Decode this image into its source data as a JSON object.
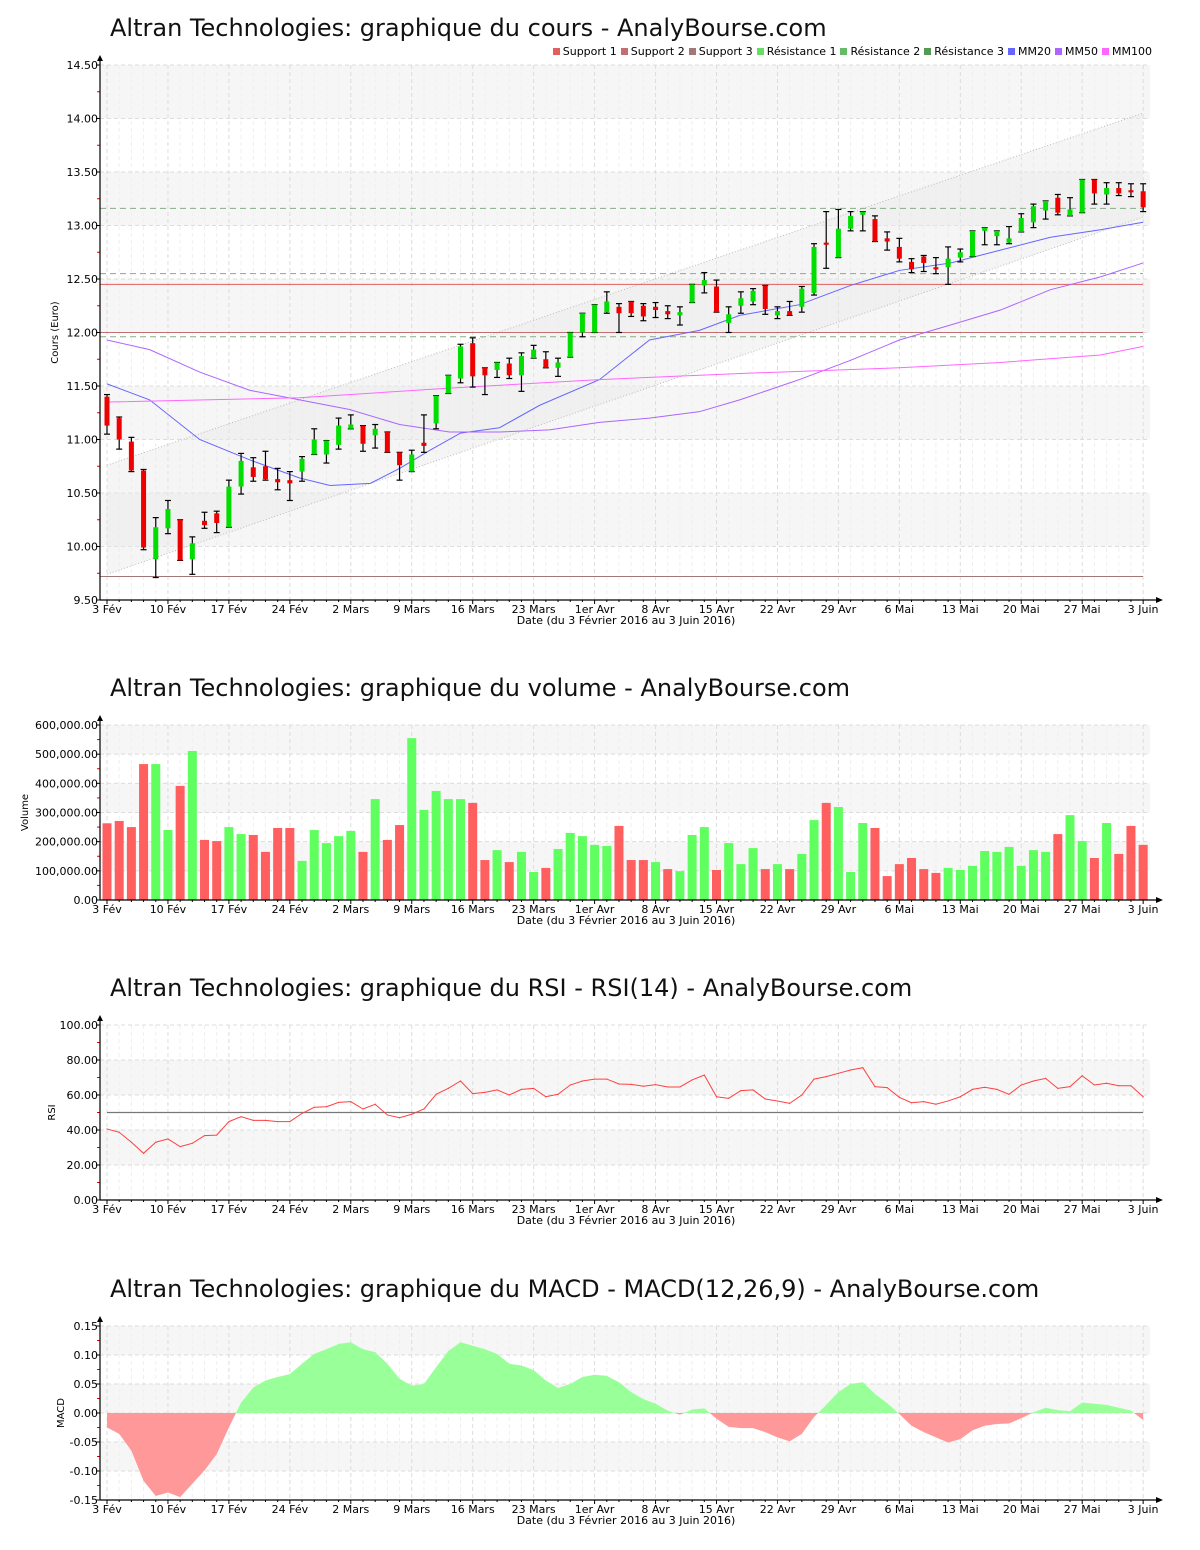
{
  "x_axis": {
    "labels": [
      "3 Fév",
      "10 Fév",
      "17 Fév",
      "24 Fév",
      "2 Mars",
      "9 Mars",
      "16 Mars",
      "23 Mars",
      "1er Avr",
      "8 Avr",
      "15 Avr",
      "22 Avr",
      "29 Avr",
      "6 Mai",
      "13 Mai",
      "20 Mai",
      "27 Mai",
      "3 Juin"
    ],
    "positions": [
      0,
      5,
      10,
      15,
      20,
      25,
      30,
      35,
      40,
      45,
      50,
      55,
      60,
      65,
      70,
      75,
      80,
      85
    ],
    "xlabel": "Date (du 3 Février 2016 au 3 Juin 2016)",
    "n_days": 86
  },
  "legend": [
    {
      "label": "Support 1",
      "color": "#e06060"
    },
    {
      "label": "Support 2",
      "color": "#c07070"
    },
    {
      "label": "Support 3",
      "color": "#a07878"
    },
    {
      "label": "Résistance 1",
      "color": "#66dd66"
    },
    {
      "label": "Résistance 2",
      "color": "#66bb66"
    },
    {
      "label": "Résistance 3",
      "color": "#559955"
    },
    {
      "label": "MM20",
      "color": "#6666ff"
    },
    {
      "label": "MM50",
      "color": "#aa66ff"
    },
    {
      "label": "MM100",
      "color": "#ff66ff"
    }
  ],
  "chart_data": [
    {
      "type": "candlestick",
      "title": "Altran Technologies: graphique du cours - AnalyBourse.com",
      "ylabel": "Cours (Euro)",
      "ylim": [
        9.5,
        14.5
      ],
      "yticks": [
        "14.50",
        "14.00",
        "13.50",
        "13.00",
        "12.50",
        "12.00",
        "11.50",
        "11.00",
        "10.50",
        "10.00",
        "9.50"
      ],
      "up_color": "#00dd00",
      "down_color": "#ee0000",
      "ohlc": [
        [
          11.4,
          11.42,
          11.05,
          11.13
        ],
        [
          11.2,
          11.21,
          10.91,
          11.0
        ],
        [
          10.98,
          11.02,
          10.7,
          10.71
        ],
        [
          10.71,
          10.72,
          9.97,
          9.99
        ],
        [
          9.88,
          10.27,
          9.71,
          10.18
        ],
        [
          10.17,
          10.43,
          10.12,
          10.35
        ],
        [
          10.25,
          10.25,
          9.87,
          9.87
        ],
        [
          9.88,
          10.09,
          9.74,
          10.03
        ],
        [
          10.24,
          10.32,
          10.17,
          10.2
        ],
        [
          10.31,
          10.33,
          10.13,
          10.22
        ],
        [
          10.18,
          10.62,
          10.18,
          10.56
        ],
        [
          10.56,
          10.87,
          10.49,
          10.8
        ],
        [
          10.74,
          10.83,
          10.61,
          10.65
        ],
        [
          10.75,
          10.89,
          10.62,
          10.63
        ],
        [
          10.63,
          10.73,
          10.53,
          10.6
        ],
        [
          10.62,
          10.7,
          10.43,
          10.59
        ],
        [
          10.7,
          10.84,
          10.61,
          10.82
        ],
        [
          10.86,
          11.1,
          10.86,
          11.0
        ],
        [
          10.86,
          10.99,
          10.78,
          10.99
        ],
        [
          10.95,
          11.2,
          10.91,
          11.13
        ],
        [
          11.1,
          11.23,
          11.1,
          11.14
        ],
        [
          11.13,
          11.13,
          10.89,
          10.96
        ],
        [
          11.04,
          11.14,
          10.92,
          11.1
        ],
        [
          11.07,
          11.07,
          10.88,
          10.88
        ],
        [
          10.88,
          10.88,
          10.62,
          10.76
        ],
        [
          10.7,
          10.9,
          10.7,
          10.86
        ],
        [
          10.97,
          11.23,
          10.88,
          10.94
        ],
        [
          11.15,
          11.41,
          11.1,
          11.41
        ],
        [
          11.43,
          11.6,
          11.43,
          11.6
        ],
        [
          11.57,
          11.89,
          11.53,
          11.87
        ],
        [
          11.9,
          11.95,
          11.49,
          11.59
        ],
        [
          11.67,
          11.67,
          11.42,
          11.6
        ],
        [
          11.65,
          11.72,
          11.58,
          11.72
        ],
        [
          11.71,
          11.76,
          11.57,
          11.6
        ],
        [
          11.6,
          11.81,
          11.45,
          11.78
        ],
        [
          11.76,
          11.88,
          11.76,
          11.84
        ],
        [
          11.75,
          11.82,
          11.67,
          11.67
        ],
        [
          11.67,
          11.76,
          11.59,
          11.72
        ],
        [
          11.77,
          12.0,
          11.77,
          12.0
        ],
        [
          12.0,
          12.18,
          11.96,
          12.18
        ],
        [
          12.0,
          12.26,
          12.0,
          12.26
        ],
        [
          12.19,
          12.38,
          12.18,
          12.29
        ],
        [
          12.24,
          12.27,
          12.0,
          12.18
        ],
        [
          12.29,
          12.29,
          12.15,
          12.18
        ],
        [
          12.25,
          12.27,
          12.11,
          12.15
        ],
        [
          12.24,
          12.28,
          12.14,
          12.21
        ],
        [
          12.2,
          12.25,
          12.13,
          12.17
        ],
        [
          12.16,
          12.24,
          12.07,
          12.19
        ],
        [
          12.28,
          12.45,
          12.28,
          12.45
        ],
        [
          12.44,
          12.56,
          12.37,
          12.49
        ],
        [
          12.43,
          12.49,
          12.19,
          12.19
        ],
        [
          12.09,
          12.24,
          12.0,
          12.17
        ],
        [
          12.25,
          12.38,
          12.18,
          12.32
        ],
        [
          12.29,
          12.41,
          12.26,
          12.39
        ],
        [
          12.44,
          12.44,
          12.17,
          12.22
        ],
        [
          12.16,
          12.24,
          12.13,
          12.2
        ],
        [
          12.2,
          12.29,
          12.16,
          12.16
        ],
        [
          12.24,
          12.43,
          12.19,
          12.41
        ],
        [
          12.37,
          12.83,
          12.35,
          12.8
        ],
        [
          12.84,
          13.13,
          12.6,
          12.82
        ],
        [
          12.7,
          13.15,
          12.7,
          12.97
        ],
        [
          12.97,
          13.13,
          12.95,
          13.09
        ],
        [
          13.1,
          13.13,
          12.95,
          13.13
        ],
        [
          13.06,
          13.09,
          12.85,
          12.85
        ],
        [
          12.88,
          12.94,
          12.77,
          12.85
        ],
        [
          12.8,
          12.88,
          12.66,
          12.69
        ],
        [
          12.66,
          12.69,
          12.56,
          12.59
        ],
        [
          12.71,
          12.72,
          12.57,
          12.65
        ],
        [
          12.61,
          12.7,
          12.55,
          12.59
        ],
        [
          12.61,
          12.8,
          12.45,
          12.69
        ],
        [
          12.7,
          12.78,
          12.66,
          12.75
        ],
        [
          12.71,
          12.95,
          12.71,
          12.95
        ],
        [
          12.95,
          12.98,
          12.82,
          12.98
        ],
        [
          12.9,
          12.95,
          12.82,
          12.95
        ],
        [
          12.84,
          12.99,
          12.83,
          12.88
        ],
        [
          12.94,
          13.11,
          12.94,
          13.07
        ],
        [
          13.03,
          13.2,
          12.98,
          13.18
        ],
        [
          13.14,
          13.23,
          13.06,
          13.23
        ],
        [
          13.26,
          13.29,
          13.1,
          13.12
        ],
        [
          13.09,
          13.26,
          13.09,
          13.15
        ],
        [
          13.12,
          13.43,
          13.12,
          13.43
        ],
        [
          13.43,
          13.43,
          13.2,
          13.3
        ],
        [
          13.29,
          13.4,
          13.2,
          13.35
        ],
        [
          13.35,
          13.4,
          13.28,
          13.3
        ],
        [
          13.33,
          13.39,
          13.27,
          13.31
        ],
        [
          13.32,
          13.39,
          13.13,
          13.17
        ]
      ],
      "supports": [
        12.45,
        12.0,
        9.72
      ],
      "resistances": [
        13.16,
        12.55,
        11.96
      ],
      "channel": {
        "upper": [
          10.76,
          14.05
        ],
        "lower": [
          9.74,
          13.08
        ]
      },
      "moving_averages": [
        {
          "name": "MM20",
          "color": "#6666ff",
          "x": [
            0,
            3.5,
            7.6,
            11.7,
            15.8,
            18.3,
            21.6,
            24,
            26.5,
            29,
            32.2,
            35.5,
            40.4,
            44.5,
            48.6,
            51.9,
            56.8,
            61,
            65,
            69.2,
            73.3,
            77.4,
            81.5,
            85
          ],
          "values": [
            11.52,
            11.37,
            11.0,
            10.81,
            10.64,
            10.57,
            10.59,
            10.73,
            10.9,
            11.06,
            11.11,
            11.32,
            11.56,
            11.93,
            12.02,
            12.16,
            12.26,
            12.44,
            12.58,
            12.65,
            12.77,
            12.89,
            12.96,
            13.03
          ]
        },
        {
          "name": "MM50",
          "color": "#aa66ff",
          "x": [
            0,
            3.5,
            7.6,
            11.7,
            15.8,
            19.9,
            24,
            28.1,
            32.2,
            36.3,
            40.4,
            44.5,
            48.6,
            51.9,
            56.8,
            61,
            65,
            69.2,
            73.3,
            77.4,
            81.5,
            85
          ],
          "values": [
            11.93,
            11.84,
            11.63,
            11.46,
            11.37,
            11.28,
            11.14,
            11.07,
            11.07,
            11.09,
            11.16,
            11.2,
            11.26,
            11.37,
            11.56,
            11.74,
            11.93,
            12.07,
            12.21,
            12.4,
            12.52,
            12.65
          ]
        },
        {
          "name": "MM100",
          "color": "#ff66ff",
          "x": [
            0,
            15.8,
            28.1,
            40.4,
            52.7,
            65,
            73.3,
            81.5,
            85
          ],
          "values": [
            11.35,
            11.39,
            11.48,
            11.56,
            11.62,
            11.67,
            11.72,
            11.79,
            11.87
          ]
        }
      ]
    },
    {
      "type": "bar",
      "title": "Altran Technologies: graphique du volume - AnalyBourse.com",
      "ylabel": "Volume",
      "ylim": [
        0,
        600000
      ],
      "yticks": [
        "600,000.00",
        "500,000.00",
        "400,000.00",
        "300,000.00",
        "200,000.00",
        "100,000.00",
        "0.00"
      ],
      "up_color": "#5fff5f",
      "down_color": "#ff5f5f",
      "values": [
        263000,
        271000,
        250000,
        466000,
        466000,
        240000,
        391000,
        511000,
        206000,
        202000,
        250000,
        226000,
        223000,
        165000,
        247000,
        247000,
        134000,
        240000,
        195000,
        219000,
        237000,
        165000,
        346000,
        206000,
        257000,
        555000,
        309000,
        374000,
        346000,
        346000,
        333000,
        137000,
        171000,
        130000,
        165000,
        96000,
        110000,
        175000,
        230000,
        219000,
        189000,
        185000,
        254000,
        137000,
        137000,
        130000,
        106000,
        99000,
        223000,
        250000,
        103000,
        195000,
        123000,
        178000,
        106000,
        123000,
        106000,
        158000,
        274000,
        333000,
        319000,
        96000,
        264000,
        247000,
        82000,
        123000,
        144000,
        106000,
        93000,
        110000,
        103000,
        117000,
        168000,
        165000,
        182000,
        117000,
        171000,
        165000,
        226000,
        291000,
        202000,
        144000,
        264000,
        158000,
        254000,
        189000
      ],
      "direction": [
        "d",
        "d",
        "d",
        "d",
        "u",
        "u",
        "d",
        "u",
        "d",
        "d",
        "u",
        "u",
        "d",
        "d",
        "d",
        "d",
        "u",
        "u",
        "u",
        "u",
        "u",
        "d",
        "u",
        "d",
        "d",
        "u",
        "u",
        "u",
        "u",
        "u",
        "d",
        "d",
        "u",
        "d",
        "u",
        "u",
        "d",
        "u",
        "u",
        "u",
        "u",
        "u",
        "d",
        "d",
        "d",
        "u",
        "d",
        "u",
        "u",
        "u",
        "d",
        "u",
        "u",
        "u",
        "d",
        "u",
        "d",
        "u",
        "u",
        "d",
        "u",
        "u",
        "u",
        "d",
        "d",
        "d",
        "d",
        "d",
        "d",
        "u",
        "u",
        "u",
        "u",
        "u",
        "u",
        "u",
        "u",
        "u",
        "d",
        "u",
        "u",
        "d",
        "u",
        "d",
        "d",
        "d"
      ]
    },
    {
      "type": "line",
      "title": "Altran Technologies: graphique du RSI - RSI(14) - AnalyBourse.com",
      "ylabel": "RSI",
      "ylim": [
        0,
        100
      ],
      "yticks": [
        "100.00",
        "80.00",
        "60.00",
        "40.00",
        "20.00",
        "0.00"
      ],
      "reference_line": 50,
      "line_color": "#ff4040",
      "values": [
        40.6,
        38.7,
        33,
        26.7,
        33,
        34.9,
        30.5,
        32.4,
        36.8,
        37.1,
        44.8,
        47.6,
        45.5,
        45.5,
        44.8,
        44.8,
        49.5,
        53,
        53.3,
        55.8,
        56.2,
        52,
        54.7,
        48.6,
        47,
        49,
        52,
        60.4,
        63.8,
        68,
        60.8,
        61.5,
        62.9,
        60,
        63.2,
        63.8,
        59,
        60.4,
        65.7,
        68,
        69.1,
        69.1,
        66.3,
        66.1,
        65,
        65.9,
        64.6,
        64.6,
        68.6,
        71.4,
        59,
        58.1,
        62.5,
        62.9,
        57.7,
        56.6,
        55.2,
        60,
        69.1,
        70.5,
        72.4,
        74.3,
        75.6,
        64.8,
        64.2,
        58.7,
        55.6,
        56.2,
        54.7,
        56.6,
        59,
        63.2,
        64.4,
        63.2,
        60.4,
        65.7,
        68,
        69.5,
        63.8,
        64.8,
        71,
        65.7,
        66.7,
        65.3,
        65.3,
        59
      ]
    },
    {
      "type": "area",
      "title": "Altran Technologies: graphique du MACD - MACD(12,26,9) - AnalyBourse.com",
      "ylabel": "MACD",
      "ylim": [
        -0.15,
        0.15
      ],
      "yticks": [
        "0.15",
        "0.10",
        "0.05",
        "0.00",
        "-0.05",
        "-0.10",
        "-0.15"
      ],
      "positive_color": "#99ff99",
      "negative_color": "#ff9999",
      "values": [
        -0.025,
        -0.036,
        -0.065,
        -0.117,
        -0.143,
        -0.137,
        -0.145,
        -0.122,
        -0.099,
        -0.071,
        -0.025,
        0.018,
        0.044,
        0.056,
        0.062,
        0.067,
        0.085,
        0.102,
        0.11,
        0.119,
        0.122,
        0.11,
        0.105,
        0.085,
        0.059,
        0.047,
        0.05,
        0.079,
        0.107,
        0.122,
        0.116,
        0.11,
        0.102,
        0.085,
        0.082,
        0.074,
        0.056,
        0.043,
        0.05,
        0.062,
        0.066,
        0.064,
        0.053,
        0.036,
        0.024,
        0.016,
        0.004,
        -0.003,
        0.006,
        0.008,
        -0.01,
        -0.024,
        -0.026,
        -0.026,
        -0.033,
        -0.042,
        -0.049,
        -0.036,
        -0.007,
        0.014,
        0.036,
        0.05,
        0.053,
        0.033,
        0.017,
        -0.002,
        -0.022,
        -0.033,
        -0.042,
        -0.051,
        -0.045,
        -0.03,
        -0.022,
        -0.019,
        -0.018,
        -0.009,
        0.001,
        0.009,
        0.005,
        0.003,
        0.018,
        0.016,
        0.014,
        0.009,
        0.004,
        -0.012
      ]
    }
  ]
}
